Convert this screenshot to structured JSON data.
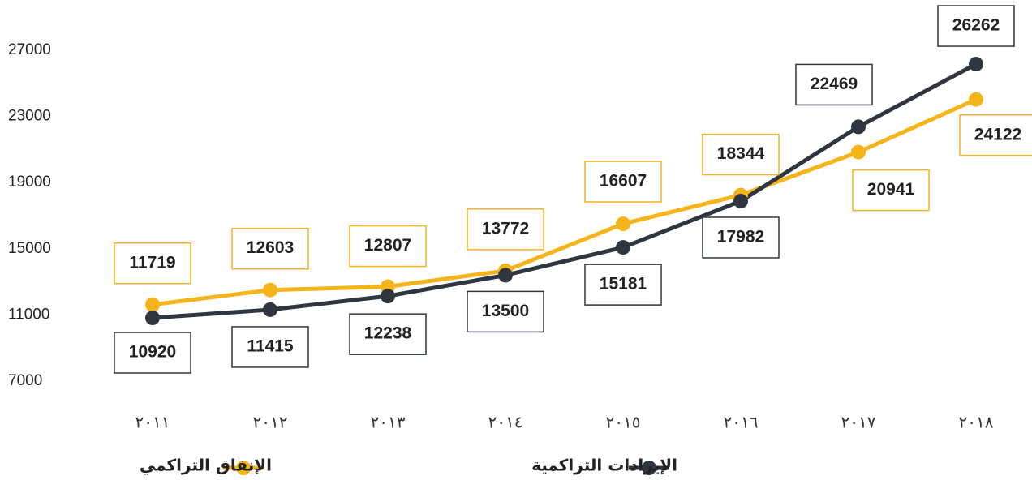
{
  "chart_data": {
    "type": "line",
    "categories": [
      "٢٠١١",
      "٢٠١٢",
      "٢٠١٣",
      "٢٠١٤",
      "٢٠١٥",
      "٢٠١٦",
      "٢٠١٧",
      "٢٠١٨"
    ],
    "series": [
      {
        "name": "الإنفاق التراكمي",
        "color": "#f5b41a",
        "values": [
          11719,
          12603,
          12807,
          13772,
          16607,
          18344,
          20941,
          24122
        ]
      },
      {
        "name": "الإيرادات التراكمية",
        "color": "#2f3640",
        "values": [
          10920,
          11415,
          12238,
          13500,
          15181,
          17982,
          22469,
          26262
        ]
      }
    ],
    "ylim": [
      7000,
      27000
    ],
    "yticks": [
      7000,
      11000,
      15000,
      19000,
      23000,
      27000
    ],
    "grid": false
  }
}
